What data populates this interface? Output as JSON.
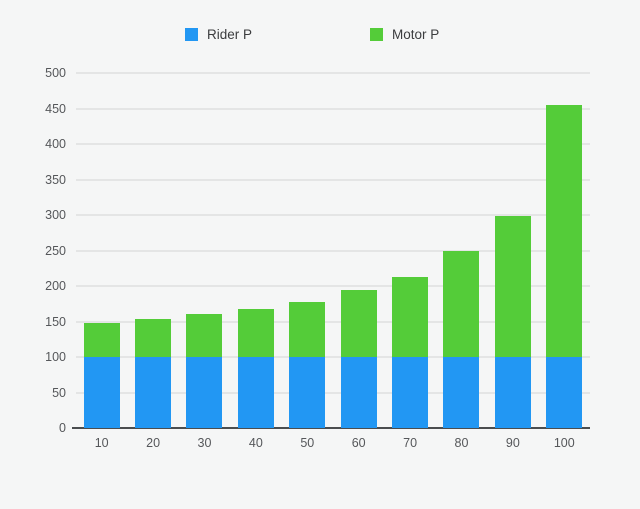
{
  "colors": {
    "background": "#f5f6f6",
    "gridline": "#e4e5e5",
    "axis_line": "#4a4d4f",
    "tick_label": "#55575a",
    "legend_text": "#3b3c3e",
    "rider_blue": "#2297f3",
    "motor_green": "#54cc39"
  },
  "chart_data": {
    "type": "bar",
    "stacked": true,
    "title": "",
    "xlabel": "",
    "ylabel": "",
    "categories": [
      "10",
      "20",
      "30",
      "40",
      "50",
      "60",
      "70",
      "80",
      "90",
      "100"
    ],
    "series": [
      {
        "name": "Rider P",
        "color": "#2297f3",
        "values": [
          100,
          100,
          100,
          100,
          100,
          100,
          100,
          100,
          100,
          100
        ]
      },
      {
        "name": "Motor P",
        "color": "#54cc39",
        "values": [
          48,
          54,
          60,
          68,
          77,
          94,
          112,
          150,
          198,
          355
        ]
      }
    ],
    "stack_totals": [
      148,
      154,
      160,
      168,
      177,
      194,
      212,
      250,
      298,
      455
    ],
    "ylim": [
      0,
      500
    ],
    "ytick_step": 50,
    "ytick_labels": [
      "0",
      "50",
      "100",
      "150",
      "200",
      "250",
      "300",
      "350",
      "400",
      "450",
      "500"
    ],
    "grid": true,
    "legend_position": "top"
  }
}
